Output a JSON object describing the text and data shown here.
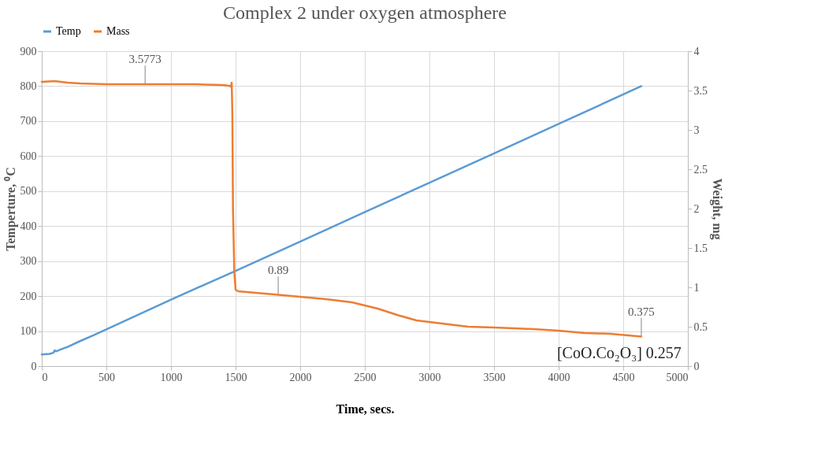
{
  "chart_data": {
    "type": "line",
    "title": "Complex 2 under oxygen atmosphere",
    "xlabel": "Time, secs.",
    "ylabel": "Temperture, ⁰C",
    "y2label": "Weight, mg",
    "series": [
      {
        "name": "Temp",
        "color": "#5b9bd5",
        "x": [
          0,
          60,
          90,
          100,
          110,
          150,
          200,
          300,
          400,
          500,
          1000,
          1500,
          2000,
          2500,
          3000,
          3500,
          4000,
          4640
        ],
        "values": [
          33,
          35,
          38,
          45,
          42,
          48,
          55,
          72,
          88,
          105,
          190,
          272,
          356,
          440,
          524,
          608,
          692,
          800
        ]
      },
      {
        "name": "Mass",
        "color": "#ed7d31",
        "axis": "y2",
        "x": [
          0,
          100,
          200,
          300,
          500,
          750,
          1000,
          1200,
          1400,
          1450,
          1465,
          1470,
          1475,
          1480,
          1490,
          1500,
          1520,
          1800,
          2000,
          2200,
          2400,
          2500,
          2600,
          2750,
          2900,
          3000,
          3200,
          3300,
          3500,
          3800,
          4000,
          4200,
          4400,
          4640
        ],
        "values": [
          3.61,
          3.62,
          3.6,
          3.59,
          3.58,
          3.58,
          3.58,
          3.58,
          3.57,
          3.56,
          3.55,
          3.6,
          3.2,
          2.0,
          1.2,
          0.97,
          0.95,
          0.91,
          0.88,
          0.85,
          0.81,
          0.77,
          0.73,
          0.65,
          0.58,
          0.56,
          0.52,
          0.5,
          0.49,
          0.47,
          0.45,
          0.42,
          0.41,
          0.375
        ]
      }
    ],
    "xlim": [
      0,
      5000
    ],
    "xticks": [
      0,
      500,
      1000,
      1500,
      2000,
      2500,
      3000,
      3500,
      4000,
      4500,
      5000
    ],
    "ylim": [
      0,
      900
    ],
    "yticks": [
      0,
      100,
      200,
      300,
      400,
      500,
      600,
      700,
      800,
      900
    ],
    "y2lim": [
      0,
      4
    ],
    "y2ticks": [
      0,
      0.5,
      1,
      1.5,
      2,
      2.5,
      3,
      3.5,
      4
    ],
    "grid": true,
    "legend": "top",
    "annotations": [
      {
        "text": "3.5773",
        "x": 800,
        "y": 805
      },
      {
        "text": "0.89",
        "x": 1830,
        "y": 202
      },
      {
        "text": "0.375",
        "x": 4640,
        "y": 84
      },
      "[CoO.Co₂O₃] 0.257"
    ]
  }
}
